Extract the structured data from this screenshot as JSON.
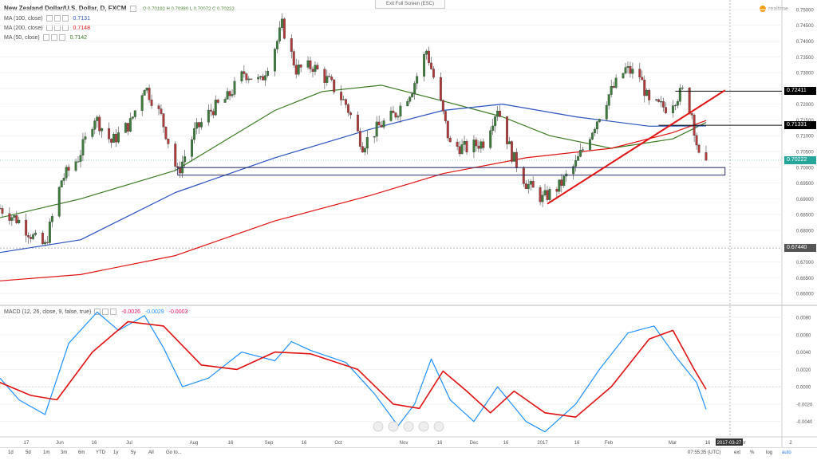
{
  "header": {
    "title": "New Zealand Dollar/U.S. Dollar, D, FXCM",
    "ohlc": "O 0.70192 H 0.70380 L 0.70072 C 0.70222",
    "exit_fullscreen": "Exit Full Screen (ESC)",
    "brand": "realtime"
  },
  "indicators": {
    "ma100": {
      "label": "MA (100, close)",
      "value": "0.7131",
      "color": "#2a52be"
    },
    "ma200": {
      "label": "MA (200, close)",
      "value": "0.7148",
      "color": "#e01010"
    },
    "ma50": {
      "label": "MA (50, close)",
      "value": "0.7142",
      "color": "#3a7a22"
    },
    "macd": {
      "label": "MACD (12, 26, close, 9, false, true)",
      "v1": "-0.0026",
      "v2": "-0.0029",
      "v3": "-0.0003"
    }
  },
  "price_axis": [
    "0.75000",
    "0.74500",
    "0.74000",
    "0.73500",
    "0.73000",
    "0.72500",
    "0.72000",
    "0.71500",
    "0.71000",
    "0.70500",
    "0.70000",
    "0.69500",
    "0.69000",
    "0.68500",
    "0.68000",
    "0.67500",
    "0.67000",
    "0.66500",
    "0.66000"
  ],
  "price_badges": [
    {
      "text": "0.72411",
      "bg": "#000000",
      "color": "#ffffff"
    },
    {
      "text": "0.71331",
      "bg": "#000000",
      "color": "#ffffff"
    },
    {
      "text": "0.70222",
      "bg": "#26a69a",
      "color": "#ffffff"
    },
    {
      "text": "0.67440",
      "bg": "#555555",
      "color": "#ffffff"
    }
  ],
  "macd_axis": [
    "0.0080",
    "0.0060",
    "0.0040",
    "0.0020",
    "0.0000",
    "-0.0020",
    "-0.0040"
  ],
  "time_axis": [
    "17",
    "Jun",
    "16",
    "Jul",
    "Aug",
    "16",
    "Sep",
    "16",
    "Oct",
    "Nov",
    "16",
    "Dec",
    "16",
    "2017",
    "16",
    "Feb",
    "Mar",
    "16",
    "Apr",
    "2"
  ],
  "date_badge": "2017-03-27",
  "bottom_bar": {
    "timeframes": [
      "1d",
      "5d",
      "1m",
      "3m",
      "6m",
      "YTD",
      "1y",
      "5y",
      "All",
      "Go to..."
    ],
    "clock": "07:55:35 (UTC)",
    "options": [
      "ext",
      "%",
      "log",
      "auto"
    ]
  },
  "chart_data": [
    {
      "type": "candlestick",
      "title": "New Zealand Dollar/U.S. Dollar, D, FXCM",
      "x_range": [
        "2016-05-12",
        "2017-04-07"
      ],
      "ylim": [
        0.657,
        0.753
      ],
      "waypoints_close": [
        [
          "2016-05-12",
          0.687
        ],
        [
          "2016-05-20",
          0.683
        ],
        [
          "2016-05-27",
          0.677
        ],
        [
          "2016-05-31",
          0.675
        ],
        [
          "2016-06-07",
          0.696
        ],
        [
          "2016-06-14",
          0.703
        ],
        [
          "2016-06-21",
          0.716
        ],
        [
          "2016-06-28",
          0.708
        ],
        [
          "2016-07-06",
          0.714
        ],
        [
          "2016-07-12",
          0.726
        ],
        [
          "2016-07-19",
          0.716
        ],
        [
          "2016-07-26",
          0.698
        ],
        [
          "2016-08-02",
          0.711
        ],
        [
          "2016-08-09",
          0.718
        ],
        [
          "2016-08-16",
          0.722
        ],
        [
          "2016-08-23",
          0.73
        ],
        [
          "2016-08-30",
          0.727
        ],
        [
          "2016-09-06",
          0.74
        ],
        [
          "2016-09-08",
          0.745
        ],
        [
          "2016-09-14",
          0.731
        ],
        [
          "2016-09-21",
          0.732
        ],
        [
          "2016-09-28",
          0.727
        ],
        [
          "2016-10-05",
          0.72
        ],
        [
          "2016-10-12",
          0.707
        ],
        [
          "2016-10-19",
          0.713
        ],
        [
          "2016-10-26",
          0.717
        ],
        [
          "2016-11-02",
          0.725
        ],
        [
          "2016-11-08",
          0.737
        ],
        [
          "2016-11-14",
          0.72
        ],
        [
          "2016-11-18",
          0.707
        ],
        [
          "2016-11-25",
          0.706
        ],
        [
          "2016-12-02",
          0.708
        ],
        [
          "2016-12-08",
          0.719
        ],
        [
          "2016-12-14",
          0.704
        ],
        [
          "2016-12-20",
          0.695
        ],
        [
          "2016-12-27",
          0.69
        ],
        [
          "2017-01-03",
          0.694
        ],
        [
          "2017-01-10",
          0.701
        ],
        [
          "2017-01-17",
          0.712
        ],
        [
          "2017-01-24",
          0.723
        ],
        [
          "2017-01-31",
          0.731
        ],
        [
          "2017-02-06",
          0.729
        ],
        [
          "2017-02-10",
          0.72
        ],
        [
          "2017-02-17",
          0.719
        ],
        [
          "2017-02-24",
          0.724
        ],
        [
          "2017-02-28",
          0.717
        ],
        [
          "2017-03-03",
          0.703
        ],
        [
          "2017-03-06",
          0.7022
        ]
      ],
      "moving_averages": {
        "MA 50": [
          [
            "2016-05-12",
            0.684
          ],
          [
            "2016-06-15",
            0.69
          ],
          [
            "2016-07-25",
            0.699
          ],
          [
            "2016-09-05",
            0.718
          ],
          [
            "2016-09-25",
            0.724
          ],
          [
            "2016-10-20",
            0.726
          ],
          [
            "2016-11-15",
            0.721
          ],
          [
            "2016-12-10",
            0.716
          ],
          [
            "2016-12-30",
            0.71
          ],
          [
            "2017-01-25",
            0.706
          ],
          [
            "2017-02-20",
            0.709
          ],
          [
            "2017-03-06",
            0.7142
          ]
        ],
        "MA 100": [
          [
            "2016-05-12",
            0.673
          ],
          [
            "2016-06-15",
            0.677
          ],
          [
            "2016-07-25",
            0.692
          ],
          [
            "2016-09-05",
            0.703
          ],
          [
            "2016-10-15",
            0.712
          ],
          [
            "2016-11-15",
            0.718
          ],
          [
            "2016-12-10",
            0.72
          ],
          [
            "2017-01-10",
            0.716
          ],
          [
            "2017-02-10",
            0.713
          ],
          [
            "2017-03-06",
            0.7131
          ]
        ],
        "MA 200": [
          [
            "2016-05-12",
            0.664
          ],
          [
            "2016-06-15",
            0.666
          ],
          [
            "2016-07-25",
            0.672
          ],
          [
            "2016-09-05",
            0.683
          ],
          [
            "2016-10-15",
            0.691
          ],
          [
            "2016-11-15",
            0.698
          ],
          [
            "2016-12-20",
            0.703
          ],
          [
            "2017-01-25",
            0.706
          ],
          [
            "2017-02-20",
            0.711
          ],
          [
            "2017-03-06",
            0.7148
          ]
        ]
      }
    },
    {
      "type": "line",
      "title": "MACD (12, 26, close, 9, false, true)",
      "ylim": [
        -0.0055,
        0.0092
      ],
      "series": [
        {
          "name": "MACD",
          "color": "#1e90ff",
          "values": [
            [
              "2016-05-12",
              0.001
            ],
            [
              "2016-05-20",
              -0.0015
            ],
            [
              "2016-05-31",
              -0.0032
            ],
            [
              "2016-06-10",
              0.005
            ],
            [
              "2016-06-22",
              0.0086
            ],
            [
              "2016-07-01",
              0.0065
            ],
            [
              "2016-07-12",
              0.0082
            ],
            [
              "2016-07-20",
              0.0045
            ],
            [
              "2016-07-28",
              0.0
            ],
            [
              "2016-08-08",
              0.001
            ],
            [
              "2016-08-22",
              0.004
            ],
            [
              "2016-09-05",
              0.003
            ],
            [
              "2016-09-12",
              0.0052
            ],
            [
              "2016-09-20",
              0.0042
            ],
            [
              "2016-10-05",
              0.0028
            ],
            [
              "2016-10-17",
              -0.0008
            ],
            [
              "2016-10-27",
              -0.0045
            ],
            [
              "2016-11-03",
              -0.002
            ],
            [
              "2016-11-10",
              0.0032
            ],
            [
              "2016-11-18",
              -0.0015
            ],
            [
              "2016-11-28",
              -0.004
            ],
            [
              "2016-12-08",
              0.0
            ],
            [
              "2016-12-20",
              -0.004
            ],
            [
              "2016-12-28",
              -0.0052
            ],
            [
              "2017-01-10",
              -0.002
            ],
            [
              "2017-01-20",
              0.002
            ],
            [
              "2017-02-01",
              0.0062
            ],
            [
              "2017-02-12",
              0.007
            ],
            [
              "2017-02-22",
              0.0032
            ],
            [
              "2017-03-02",
              0.0005
            ],
            [
              "2017-03-06",
              -0.0026
            ]
          ]
        },
        {
          "name": "Signal",
          "color": "#e01010",
          "values": [
            [
              "2016-05-12",
              0.0005
            ],
            [
              "2016-05-25",
              -0.001
            ],
            [
              "2016-06-05",
              -0.0015
            ],
            [
              "2016-06-20",
              0.004
            ],
            [
              "2016-07-05",
              0.0075
            ],
            [
              "2016-07-20",
              0.007
            ],
            [
              "2016-08-05",
              0.0025
            ],
            [
              "2016-08-20",
              0.002
            ],
            [
              "2016-09-05",
              0.004
            ],
            [
              "2016-09-20",
              0.0038
            ],
            [
              "2016-10-10",
              0.002
            ],
            [
              "2016-10-25",
              -0.002
            ],
            [
              "2016-11-05",
              -0.0025
            ],
            [
              "2016-11-15",
              0.0018
            ],
            [
              "2016-11-25",
              -0.0005
            ],
            [
              "2016-12-05",
              -0.003
            ],
            [
              "2016-12-15",
              -0.0005
            ],
            [
              "2016-12-28",
              -0.003
            ],
            [
              "2017-01-10",
              -0.0035
            ],
            [
              "2017-01-25",
              0.0
            ],
            [
              "2017-02-10",
              0.0055
            ],
            [
              "2017-02-20",
              0.0065
            ],
            [
              "2017-03-01",
              0.002
            ],
            [
              "2017-03-06",
              -0.0003
            ]
          ]
        }
      ],
      "zero_line": 0
    }
  ],
  "annotations": {
    "support_zone": {
      "from": "2016-07-26",
      "to": "2017-03-14",
      "low": 0.6975,
      "high": 0.6999
    },
    "h_line_upper": {
      "from": "2017-02-21",
      "to": "2017-03-31",
      "price": 0.72411
    },
    "h_line_lower": {
      "from": "2017-02-14",
      "to": "2017-03-31",
      "price": 0.71331
    },
    "trend_line": [
      [
        "2016-12-29",
        0.6884
      ],
      [
        "2017-03-14",
        0.7244
      ]
    ]
  }
}
